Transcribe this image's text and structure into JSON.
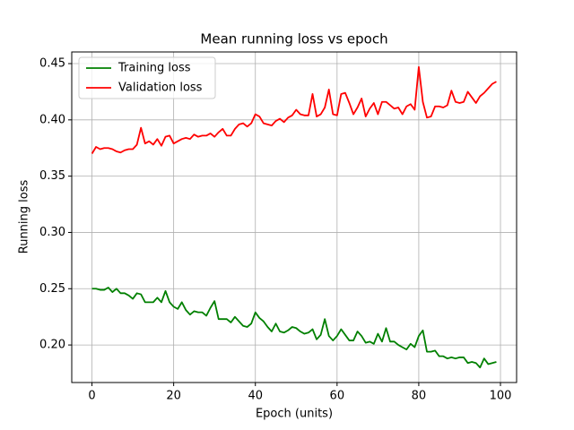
{
  "chart_data": {
    "type": "line",
    "title": "Mean running loss vs epoch",
    "x_label": "Epoch (units)",
    "y_label": "Running loss",
    "x": [
      0,
      1,
      2,
      3,
      4,
      5,
      6,
      7,
      8,
      9,
      10,
      11,
      12,
      13,
      14,
      15,
      16,
      17,
      18,
      19,
      20,
      21,
      22,
      23,
      24,
      25,
      26,
      27,
      28,
      29,
      30,
      31,
      32,
      33,
      34,
      35,
      36,
      37,
      38,
      39,
      40,
      41,
      42,
      43,
      44,
      45,
      46,
      47,
      48,
      49,
      50,
      51,
      52,
      53,
      54,
      55,
      56,
      57,
      58,
      59,
      60,
      61,
      62,
      63,
      64,
      65,
      66,
      67,
      68,
      69,
      70,
      71,
      72,
      73,
      74,
      75,
      76,
      77,
      78,
      79,
      80,
      81,
      82,
      83,
      84,
      85,
      86,
      87,
      88,
      89,
      90,
      91,
      92,
      93,
      94,
      95,
      96,
      97,
      98,
      99
    ],
    "series": [
      {
        "name": "Training loss",
        "color": "#008000",
        "values": [
          0.25,
          0.25,
          0.249,
          0.249,
          0.251,
          0.247,
          0.25,
          0.246,
          0.246,
          0.244,
          0.241,
          0.246,
          0.245,
          0.238,
          0.238,
          0.238,
          0.242,
          0.238,
          0.248,
          0.238,
          0.234,
          0.232,
          0.238,
          0.231,
          0.227,
          0.23,
          0.229,
          0.229,
          0.226,
          0.233,
          0.239,
          0.223,
          0.223,
          0.223,
          0.22,
          0.225,
          0.221,
          0.217,
          0.216,
          0.219,
          0.229,
          0.224,
          0.221,
          0.216,
          0.212,
          0.219,
          0.212,
          0.211,
          0.213,
          0.216,
          0.215,
          0.212,
          0.21,
          0.211,
          0.214,
          0.205,
          0.209,
          0.223,
          0.208,
          0.204,
          0.208,
          0.214,
          0.209,
          0.204,
          0.204,
          0.212,
          0.208,
          0.202,
          0.203,
          0.201,
          0.21,
          0.203,
          0.215,
          0.203,
          0.203,
          0.2,
          0.198,
          0.196,
          0.201,
          0.198,
          0.208,
          0.213,
          0.194,
          0.194,
          0.195,
          0.19,
          0.19,
          0.188,
          0.189,
          0.188,
          0.189,
          0.189,
          0.184,
          0.185,
          0.184,
          0.18,
          0.188,
          0.183,
          0.184,
          0.185
        ]
      },
      {
        "name": "Validation loss",
        "color": "#ff0000",
        "values": [
          0.37,
          0.376,
          0.374,
          0.375,
          0.375,
          0.374,
          0.372,
          0.371,
          0.373,
          0.374,
          0.374,
          0.378,
          0.393,
          0.379,
          0.381,
          0.378,
          0.383,
          0.377,
          0.385,
          0.386,
          0.379,
          0.381,
          0.383,
          0.384,
          0.383,
          0.387,
          0.385,
          0.386,
          0.386,
          0.388,
          0.385,
          0.389,
          0.392,
          0.386,
          0.386,
          0.392,
          0.396,
          0.397,
          0.394,
          0.397,
          0.405,
          0.403,
          0.397,
          0.396,
          0.395,
          0.399,
          0.401,
          0.398,
          0.402,
          0.404,
          0.409,
          0.405,
          0.404,
          0.404,
          0.423,
          0.403,
          0.405,
          0.411,
          0.427,
          0.405,
          0.404,
          0.423,
          0.424,
          0.415,
          0.405,
          0.411,
          0.419,
          0.403,
          0.41,
          0.415,
          0.405,
          0.416,
          0.416,
          0.413,
          0.41,
          0.411,
          0.405,
          0.412,
          0.414,
          0.409,
          0.447,
          0.416,
          0.402,
          0.403,
          0.412,
          0.412,
          0.411,
          0.413,
          0.426,
          0.416,
          0.415,
          0.416,
          0.425,
          0.42,
          0.415,
          0.421,
          0.424,
          0.428,
          0.432,
          0.434
        ]
      }
    ],
    "xlim": [
      -4.95,
      103.95
    ],
    "ylim": [
      0.16665,
      0.46035
    ],
    "xticks": [
      0,
      20,
      40,
      60,
      80,
      100
    ],
    "yticks": [
      {
        "value": 0.2,
        "label": "0.20"
      },
      0.25,
      {
        "value": 0.3,
        "label": "0.30"
      },
      0.35,
      {
        "value": 0.4,
        "label": "0.40"
      },
      0.45
    ],
    "grid": true,
    "legend": "upper left"
  }
}
